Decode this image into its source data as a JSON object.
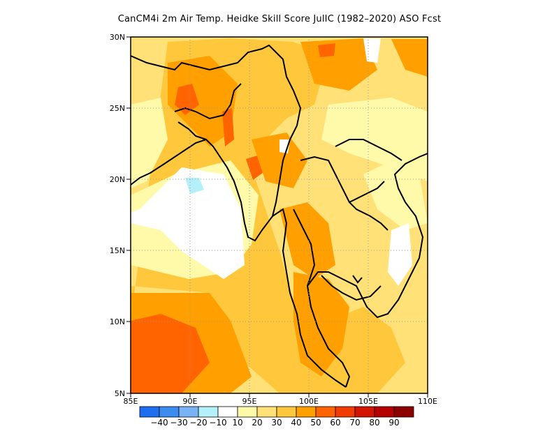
{
  "title": "CanCM4i  2m Air Temp. Heidke Skill Score JulIC (1982–2020) ASO Fcst",
  "map": {
    "lon_range": [
      85,
      110
    ],
    "lat_range": [
      5,
      30
    ],
    "x_ticks": [
      "85E",
      "90E",
      "95E",
      "100E",
      "105E",
      "110E"
    ],
    "y_ticks": [
      "5N",
      "10N",
      "15N",
      "20N",
      "25N",
      "30N"
    ],
    "grid": "dotted"
  },
  "colorbar": {
    "labels": [
      "−40",
      "−30",
      "−20",
      "−10",
      "10",
      "20",
      "30",
      "40",
      "50",
      "60",
      "70",
      "80",
      "90"
    ],
    "colors": [
      "#1e6ff0",
      "#3c8cf0",
      "#78b4f5",
      "#b4f0fa",
      "#ffffff",
      "#fffaaa",
      "#ffe178",
      "#ffc83c",
      "#ffa000",
      "#ff6400",
      "#f03c00",
      "#d21400",
      "#b40000",
      "#8c0000"
    ]
  }
}
